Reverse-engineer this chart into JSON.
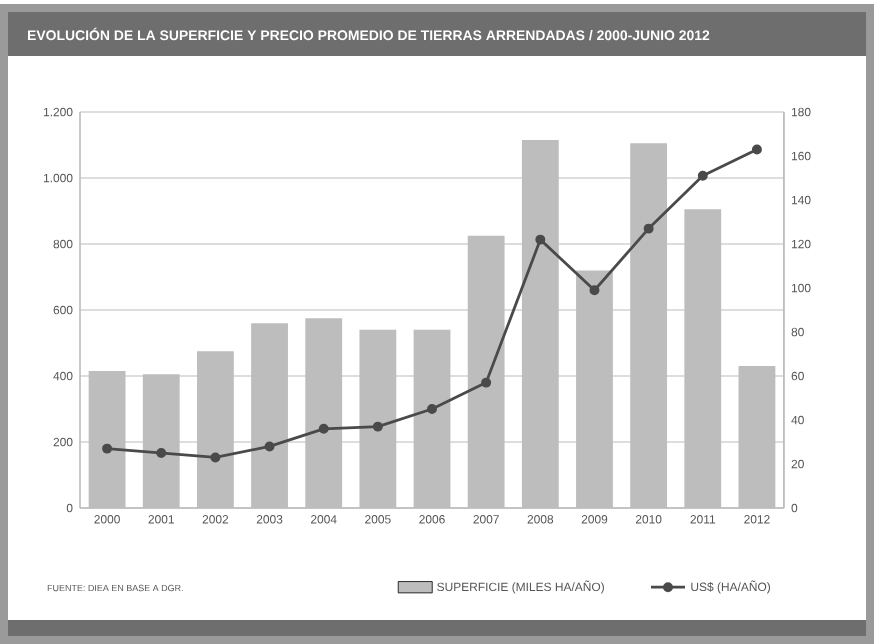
{
  "chart_data": {
    "type": "bar",
    "title": "EVOLUCIÓN DE LA SUPERFICIE Y PRECIO PROMEDIO DE TIERRAS ARRENDADAS / 2000-JUNIO 2012",
    "categories": [
      "2000",
      "2001",
      "2002",
      "2003",
      "2004",
      "2005",
      "2006",
      "2007",
      "2008",
      "2009",
      "2010",
      "2011",
      "2012"
    ],
    "series": [
      {
        "name": "SUPERFICIE (MILES HA/AÑO)",
        "color": "#bdbdbd",
        "values": [
          415,
          405,
          475,
          560,
          575,
          540,
          540,
          825,
          1115,
          720,
          1105,
          905,
          430
        ]
      },
      {
        "name": "US$ (HA/AÑO)",
        "type": "line",
        "axis": "y2",
        "color": "#4a4a4a",
        "marker": "circle",
        "values": [
          27,
          25,
          23,
          28,
          36,
          37,
          45,
          57,
          122,
          99,
          127,
          151,
          163
        ]
      }
    ],
    "ylim": [
      0,
      1200
    ],
    "yticks": [
      0,
      200,
      400,
      600,
      800,
      {
        "value": 1000,
        "label": "1.000"
      },
      {
        "value": 1200,
        "label": "1.200"
      }
    ],
    "y2lim": [
      0,
      180
    ],
    "y2ticks": [
      0,
      20,
      40,
      60,
      80,
      100,
      120,
      140,
      160,
      180
    ],
    "grid": "y",
    "legend": "bottom",
    "annotations": [
      "FUENTE: DIEA EN BASE A DGR."
    ]
  }
}
